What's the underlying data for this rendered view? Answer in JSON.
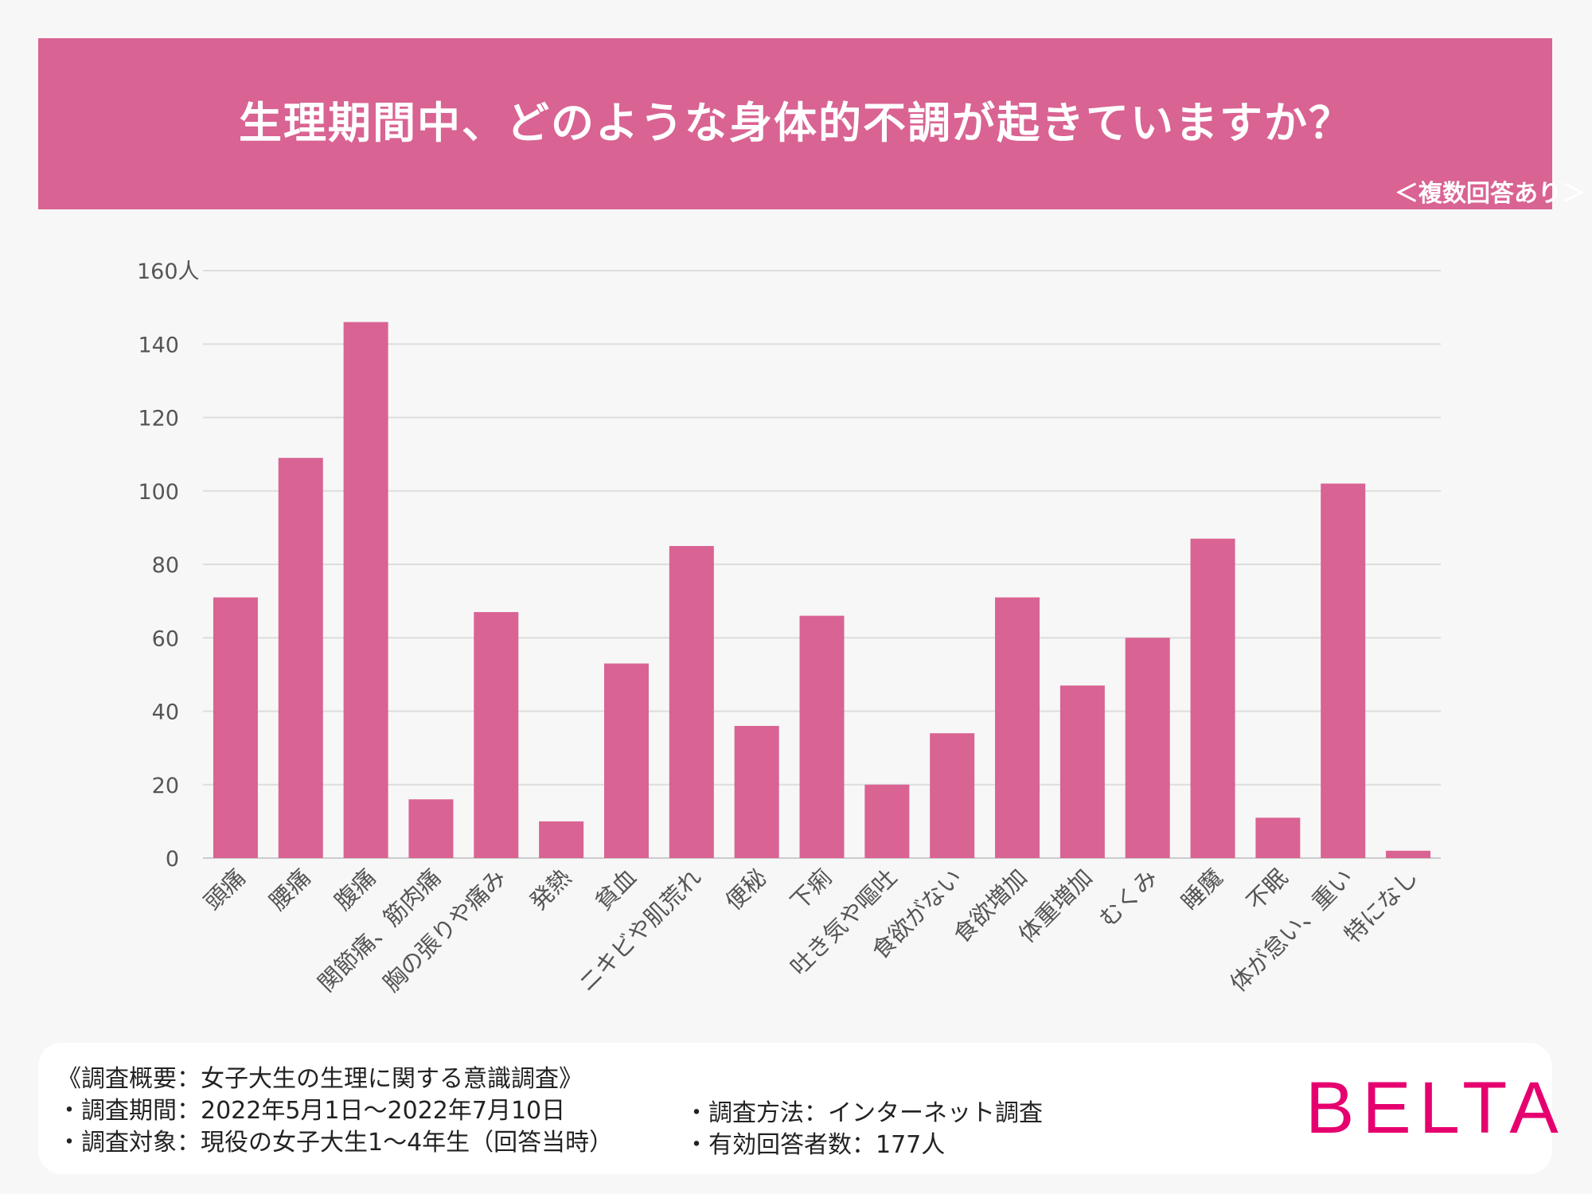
{
  "header": {
    "title": "生理期間中、どのような身体的不調が起きていますか？",
    "subtitle": "＜複数回答あり＞"
  },
  "chart_data": {
    "type": "bar",
    "title": "生理期間中、どのような身体的不調が起きていますか？",
    "ylabel": "人",
    "ylim": [
      0,
      160
    ],
    "yticks": [
      "0",
      "20",
      "40",
      "60",
      "80",
      "100",
      "120",
      "140",
      "160人"
    ],
    "grid": true,
    "categories": [
      "頭痛",
      "腰痛",
      "腹痛",
      "関節痛、筋肉痛",
      "胸の張りや痛み",
      "発熱",
      "貧血",
      "ニキビや肌荒れ",
      "便秘",
      "下痢",
      "吐き気や嘔吐",
      "食欲がない",
      "食欲増加",
      "体重増加",
      "むくみ",
      "睡魔",
      "不眠",
      "体が怠い、重い",
      "特になし"
    ],
    "values": [
      71,
      109,
      146,
      16,
      67,
      10,
      53,
      85,
      36,
      66,
      20,
      34,
      71,
      47,
      60,
      87,
      11,
      102,
      2
    ],
    "bar_color": "#d96393"
  },
  "footer": {
    "survey_title": "《調査概要：女子大生の生理に関する意識調査》",
    "period": "・調査期間：2022年5月1日～2022年7月10日",
    "target": "・調査対象：現役の女子大生1～4年生（回答当時）",
    "method": "・調査方法：インターネット調査",
    "respondents": "・有効回答者数：177人"
  },
  "brand": {
    "logo": "BELTA",
    "color": "#e6006f"
  }
}
